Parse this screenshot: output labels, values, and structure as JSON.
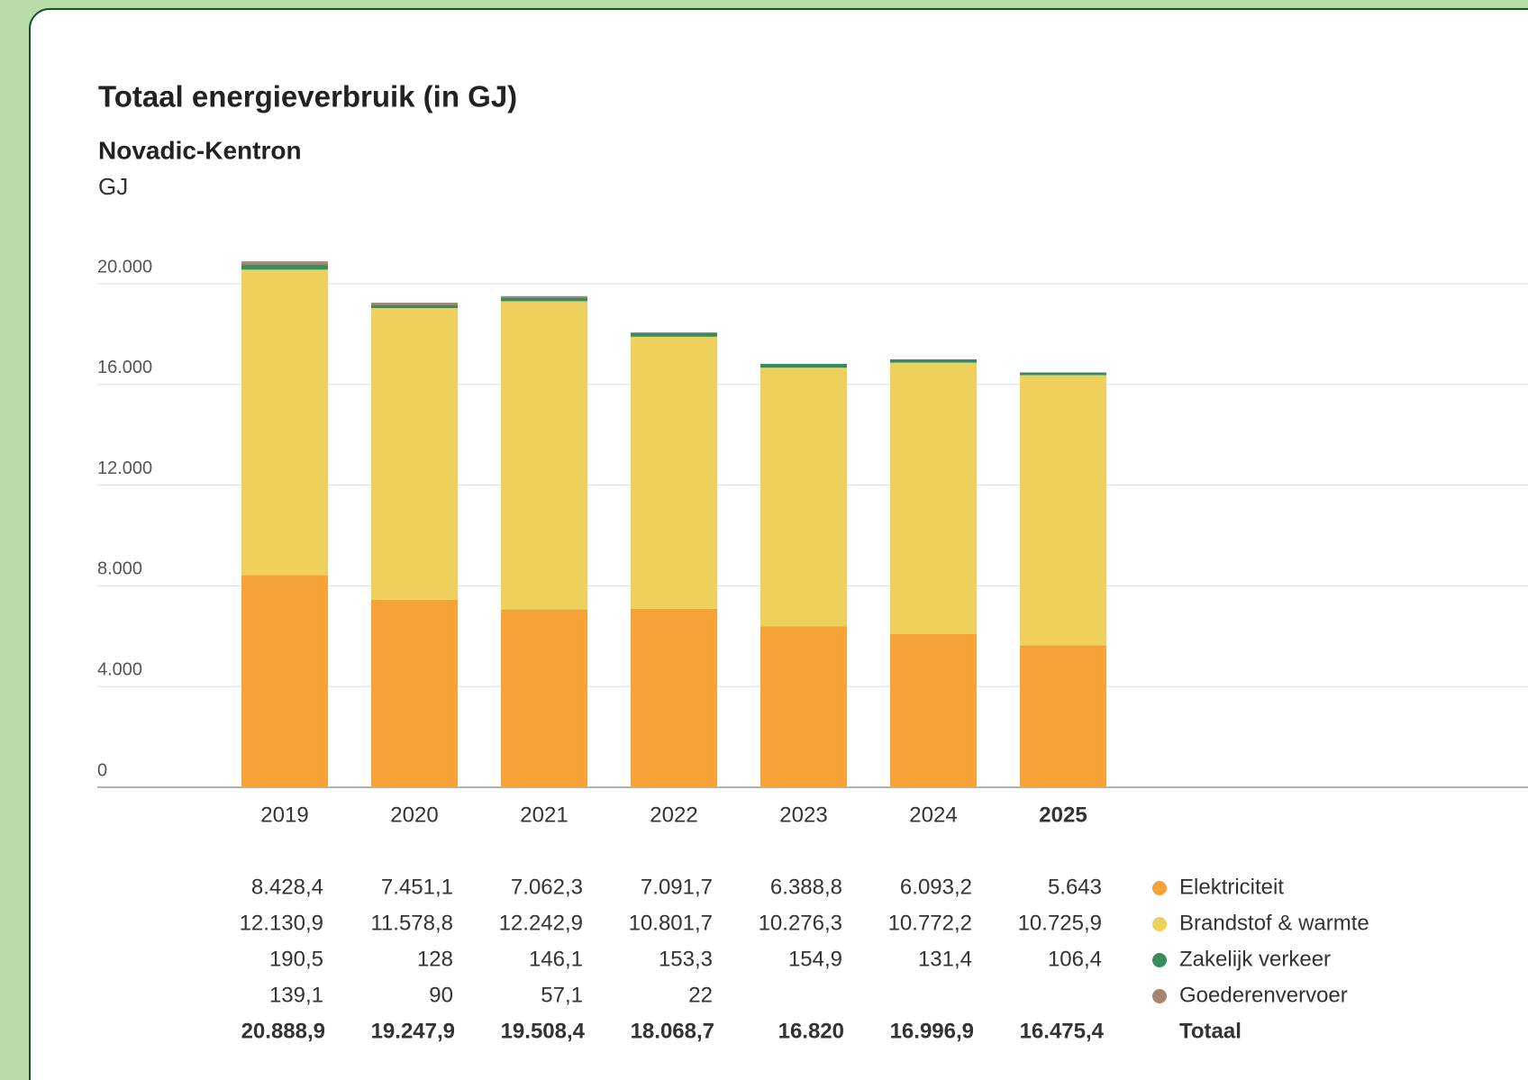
{
  "chart_data": {
    "type": "stacked_bar",
    "title": "Totaal energieverbruik (in GJ)",
    "subtitle": "Novadic-Kentron",
    "y_label": "GJ",
    "categories": [
      "2019",
      "2020",
      "2021",
      "2022",
      "2023",
      "2024",
      "2025"
    ],
    "series": [
      {
        "name": "Elektriciteit",
        "color": "#f5a236",
        "values": [
          8428.4,
          7451.1,
          7062.3,
          7091.7,
          6388.8,
          6093.2,
          5643
        ],
        "value_labels": [
          "8.428,4",
          "7.451,1",
          "7.062,3",
          "7.091,7",
          "6.388,8",
          "6.093,2",
          "5.643"
        ]
      },
      {
        "name": "Brandstof & warmte",
        "color": "#f0d05c",
        "values": [
          12130.9,
          11578.8,
          12242.9,
          10801.7,
          10276.3,
          10772.2,
          10725.9
        ],
        "value_labels": [
          "12.130,9",
          "11.578,8",
          "12.242,9",
          "10.801,7",
          "10.276,3",
          "10.772,2",
          "10.725,9"
        ]
      },
      {
        "name": "Zakelijk verkeer",
        "color": "#3a8c5a",
        "values": [
          190.5,
          128,
          146.1,
          153.3,
          154.9,
          131.4,
          106.4
        ],
        "value_labels": [
          "190,5",
          "128",
          "146,1",
          "153,3",
          "154,9",
          "131,4",
          "106,4"
        ]
      },
      {
        "name": "Goederenvervoer",
        "color": "#a88570",
        "values": [
          139.1,
          90,
          57.1,
          22,
          null,
          null,
          null
        ],
        "value_labels": [
          "139,1",
          "90",
          "57,1",
          "22",
          null,
          null,
          null
        ]
      }
    ],
    "totals": {
      "name": "Totaal",
      "values": [
        20888.9,
        19247.9,
        19508.4,
        18068.7,
        16820,
        16996.9,
        16475.4
      ],
      "value_labels": [
        "20.888,9",
        "19.247,9",
        "19.508,4",
        "18.068,7",
        "16.820",
        "16.996,9",
        "16.475,4"
      ]
    },
    "ylim": [
      0,
      20000
    ],
    "yticks": [
      0,
      {
        "value": 4000,
        "label": "4.000"
      },
      {
        "value": 8000,
        "label": "8.000"
      },
      {
        "value": 12000,
        "label": "12.000"
      },
      {
        "value": 16000,
        "label": "16.000"
      },
      {
        "value": 20000,
        "label": "20.000"
      }
    ],
    "grid": true
  }
}
